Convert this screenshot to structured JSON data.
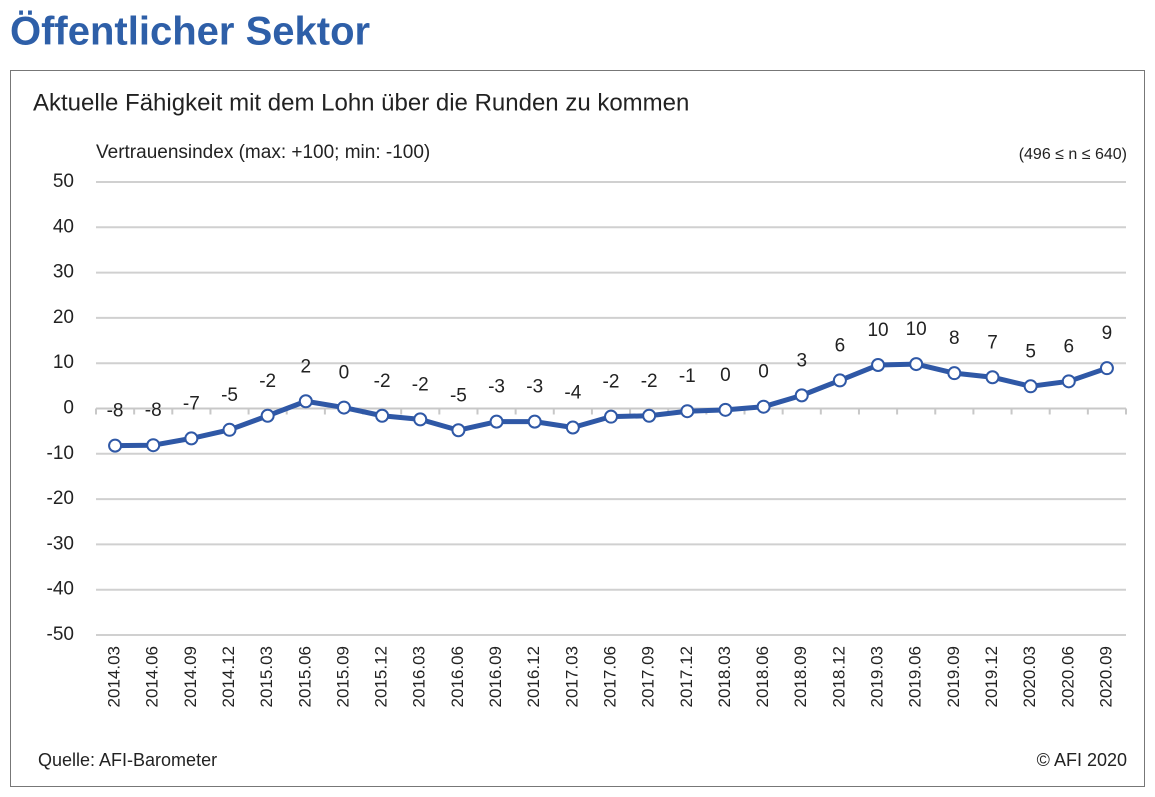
{
  "header": {
    "title": "Öffentlicher Sektor"
  },
  "chart_data": {
    "type": "line",
    "title": "Aktuelle Fähigkeit mit dem Lohn über die Runden zu kommen",
    "y_label": "Vertrauensindex (max: +100; min: -100)",
    "note": "(496 ≤ n ≤ 640)",
    "source": "Quelle: AFI-Barometer",
    "copyright": "© AFI 2020",
    "categories": [
      "2014.03",
      "2014.06",
      "2014.09",
      "2014.12",
      "2015.03",
      "2015.06",
      "2015.09",
      "2015.12",
      "2016.03",
      "2016.06",
      "2016.09",
      "2016.12",
      "2017.03",
      "2017.06",
      "2017.09",
      "2017.12",
      "2018.03",
      "2018.06",
      "2018.09",
      "2018.12",
      "2019.03",
      "2019.06",
      "2019.09",
      "2019.12",
      "2020.03",
      "2020.06",
      "2020.09"
    ],
    "series": [
      {
        "name": "Vertrauensindex",
        "color": "#2f58a6",
        "values": [
          -8.2,
          -8.1,
          -6.6,
          -4.7,
          -1.6,
          1.6,
          0.2,
          -1.6,
          -2.4,
          -4.8,
          -2.9,
          -2.9,
          -4.2,
          -1.8,
          -1.6,
          -0.6,
          -0.3,
          0.4,
          2.9,
          6.2,
          9.6,
          9.8,
          7.8,
          6.9,
          4.9,
          6.0,
          8.9
        ],
        "value_labels": [
          "-8",
          "-8",
          "-7",
          "-5",
          "-2",
          "2",
          "0",
          "-2",
          "-2",
          "-5",
          "-3",
          "-3",
          "-4",
          "-2",
          "-2",
          "-1",
          "0",
          "0",
          "3",
          "6",
          "10",
          "10",
          "8",
          "7",
          "5",
          "6",
          "9"
        ]
      }
    ],
    "ylim": [
      -50,
      50
    ],
    "yticks": [
      -50,
      -40,
      -30,
      -20,
      -10,
      0,
      10,
      20,
      30,
      40,
      50
    ],
    "grid": true
  }
}
